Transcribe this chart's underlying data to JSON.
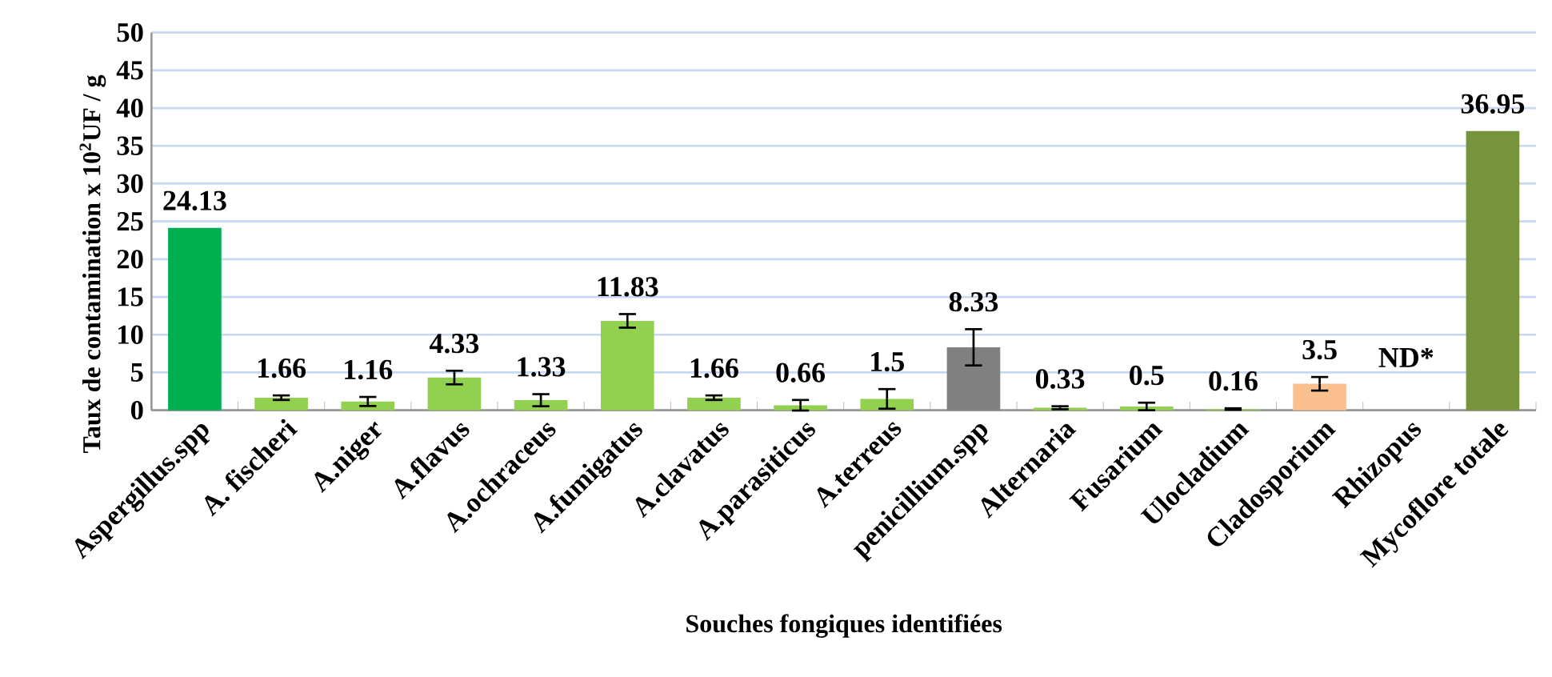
{
  "chart_data": {
    "type": "bar",
    "xlabel": "Souches fongiques identifiées",
    "ylabel": "Taux de contamination    x 10$^{2}$UF / g",
    "categories": [
      "Aspergillus.spp",
      "A. fischeri",
      "A.niger",
      "A.flavus",
      "A.ochraceus",
      "A.fumigatus",
      "A.clavatus",
      "A.parasiticus",
      "A.terreus",
      "penicillium.spp",
      "Alternaria",
      "Fusarium",
      "Ulocladium",
      "Cladosporium",
      "Rhizopus",
      "Mycoflore totale"
    ],
    "values": [
      24.13,
      1.66,
      1.16,
      4.33,
      1.33,
      11.83,
      1.66,
      0.66,
      1.5,
      8.33,
      0.33,
      0.5,
      0.16,
      3.5,
      null,
      36.95
    ],
    "errors": [
      null,
      0.3,
      0.6,
      0.9,
      0.8,
      0.9,
      0.3,
      0.7,
      1.3,
      2.4,
      0.2,
      0.5,
      0.1,
      0.9,
      null,
      null
    ],
    "value_labels": [
      "24.13",
      "1.66",
      "1.16",
      "4.33",
      "1.33",
      "11.83",
      "1.66",
      "0.66",
      "1.5",
      "8.33",
      "0.33",
      "0.5",
      "0.16",
      "3.5",
      "ND*",
      "36.95"
    ],
    "colors": [
      "#00b050",
      "#92d050",
      "#92d050",
      "#92d050",
      "#92d050",
      "#92d050",
      "#92d050",
      "#92d050",
      "#92d050",
      "#808080",
      "#92d050",
      "#92d050",
      "#92d050",
      "#fac090",
      "#92d050",
      "#77933c"
    ],
    "ylim": [
      0,
      50
    ],
    "yticks": [
      0,
      5,
      10,
      15,
      20,
      25,
      30,
      35,
      40,
      45,
      50
    ],
    "grid": "y"
  }
}
